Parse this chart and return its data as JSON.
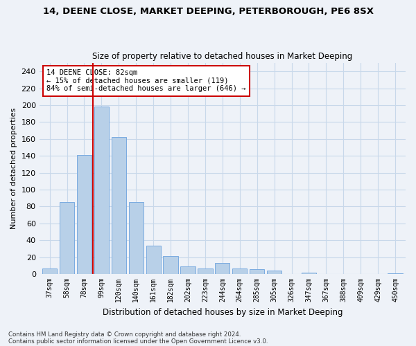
{
  "title1": "14, DEENE CLOSE, MARKET DEEPING, PETERBOROUGH, PE6 8SX",
  "title2": "Size of property relative to detached houses in Market Deeping",
  "xlabel": "Distribution of detached houses by size in Market Deeping",
  "ylabel": "Number of detached properties",
  "categories": [
    "37sqm",
    "58sqm",
    "78sqm",
    "99sqm",
    "120sqm",
    "140sqm",
    "161sqm",
    "182sqm",
    "202sqm",
    "223sqm",
    "244sqm",
    "264sqm",
    "285sqm",
    "305sqm",
    "326sqm",
    "347sqm",
    "367sqm",
    "388sqm",
    "409sqm",
    "429sqm",
    "450sqm"
  ],
  "values": [
    7,
    85,
    141,
    198,
    162,
    85,
    34,
    21,
    9,
    7,
    13,
    7,
    6,
    4,
    0,
    2,
    0,
    0,
    0,
    0,
    1
  ],
  "bar_color": "#b8d0e8",
  "bar_edge_color": "#7aabe0",
  "grid_color": "#c8d8ea",
  "vline_color": "#cc0000",
  "vline_x_index": 2.5,
  "annotation_text": "14 DEENE CLOSE: 82sqm\n← 15% of detached houses are smaller (119)\n84% of semi-detached houses are larger (646) →",
  "annotation_box_color": "#ffffff",
  "annotation_box_edge": "#cc0000",
  "ylim": [
    0,
    250
  ],
  "yticks": [
    0,
    20,
    40,
    60,
    80,
    100,
    120,
    140,
    160,
    180,
    200,
    220,
    240
  ],
  "footer1": "Contains HM Land Registry data © Crown copyright and database right 2024.",
  "footer2": "Contains public sector information licensed under the Open Government Licence v3.0.",
  "bg_color": "#eef2f8"
}
